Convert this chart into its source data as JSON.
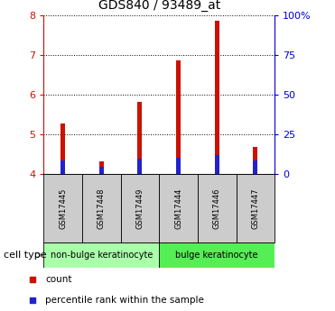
{
  "title": "GDS840 / 93489_at",
  "samples": [
    "GSM17445",
    "GSM17448",
    "GSM17449",
    "GSM17444",
    "GSM17446",
    "GSM17447"
  ],
  "count_values": [
    5.28,
    4.33,
    5.83,
    6.88,
    7.88,
    4.68
  ],
  "percentile_values": [
    4.35,
    4.18,
    4.38,
    4.42,
    4.48,
    4.35
  ],
  "bar_bottom": 4.0,
  "ylim_left": [
    4.0,
    8.0
  ],
  "ylim_right": [
    0,
    100
  ],
  "yticks_left": [
    4,
    5,
    6,
    7,
    8
  ],
  "yticks_right": [
    0,
    25,
    50,
    75,
    100
  ],
  "ytick_labels_right": [
    "0",
    "25",
    "50",
    "75",
    "100%"
  ],
  "groups": [
    {
      "label": "non-bulge keratinocyte",
      "indices": [
        0,
        1,
        2
      ],
      "color": "#aaffaa"
    },
    {
      "label": "bulge keratinocyte",
      "indices": [
        3,
        4,
        5
      ],
      "color": "#55ee55"
    }
  ],
  "cell_type_label": "cell type",
  "legend_count_label": "count",
  "legend_percentile_label": "percentile rank within the sample",
  "count_color": "#cc1100",
  "percentile_color": "#2222cc",
  "bar_width": 0.12,
  "grid_color": "black",
  "tick_color_left": "#cc1100",
  "tick_color_right": "#0000cc",
  "sample_box_color": "#cccccc",
  "arrow_color": "#999999"
}
